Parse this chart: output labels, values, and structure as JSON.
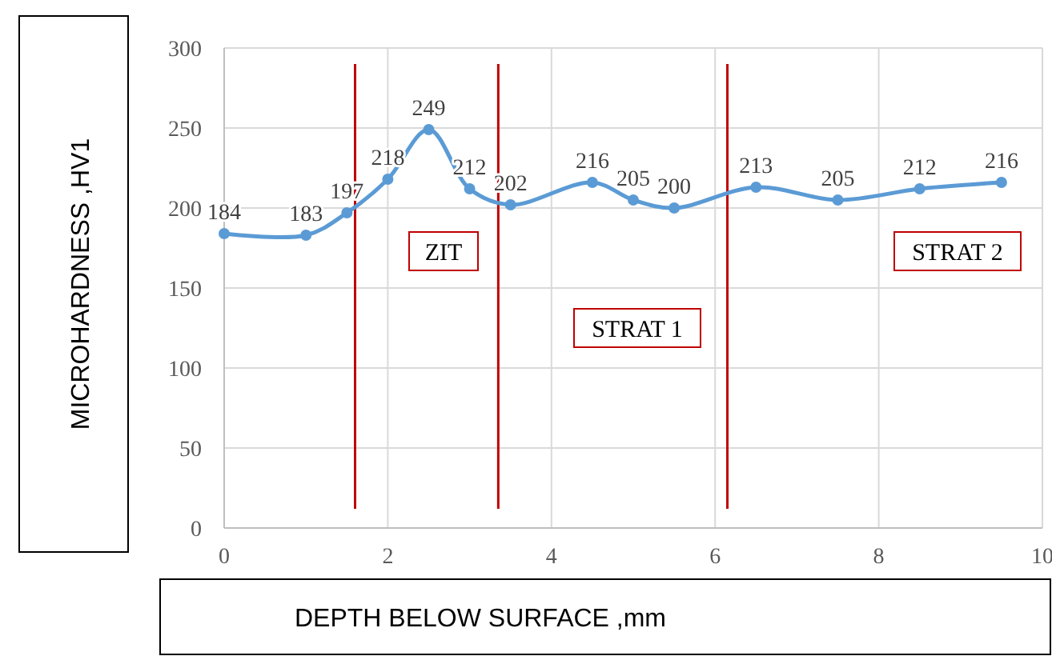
{
  "chart_data": {
    "type": "line",
    "xlabel": "DEPTH BELOW SURFACE ,mm",
    "ylabel": "MICROHARDNESS ,HV1",
    "x": [
      0,
      1,
      1.5,
      2,
      2.5,
      3,
      3.5,
      4.5,
      5,
      5.5,
      6.5,
      7.5,
      8.5,
      9.5
    ],
    "series": [
      {
        "color": "#5b9bd5",
        "values": [
          184,
          183,
          197,
          218,
          249,
          212,
          202,
          216,
          205,
          200,
          213,
          205,
          212,
          216
        ]
      }
    ],
    "xlim": [
      0,
      10
    ],
    "xticks": [
      0,
      2,
      4,
      6,
      8,
      10
    ],
    "ylim": [
      0,
      300
    ],
    "yticks": [
      0,
      50,
      100,
      150,
      200,
      250,
      300
    ],
    "grid": true,
    "marker": "circle",
    "data_labels": true,
    "ref_lines": [
      {
        "axis": "x",
        "value": 1.6,
        "color": "#c00000"
      },
      {
        "axis": "x",
        "value": 3.35,
        "color": "#c00000"
      },
      {
        "axis": "x",
        "value": 6.15,
        "color": "#c00000"
      }
    ],
    "annotations": [
      "ZIT",
      "STRAT 1",
      "STRAT 2"
    ]
  }
}
